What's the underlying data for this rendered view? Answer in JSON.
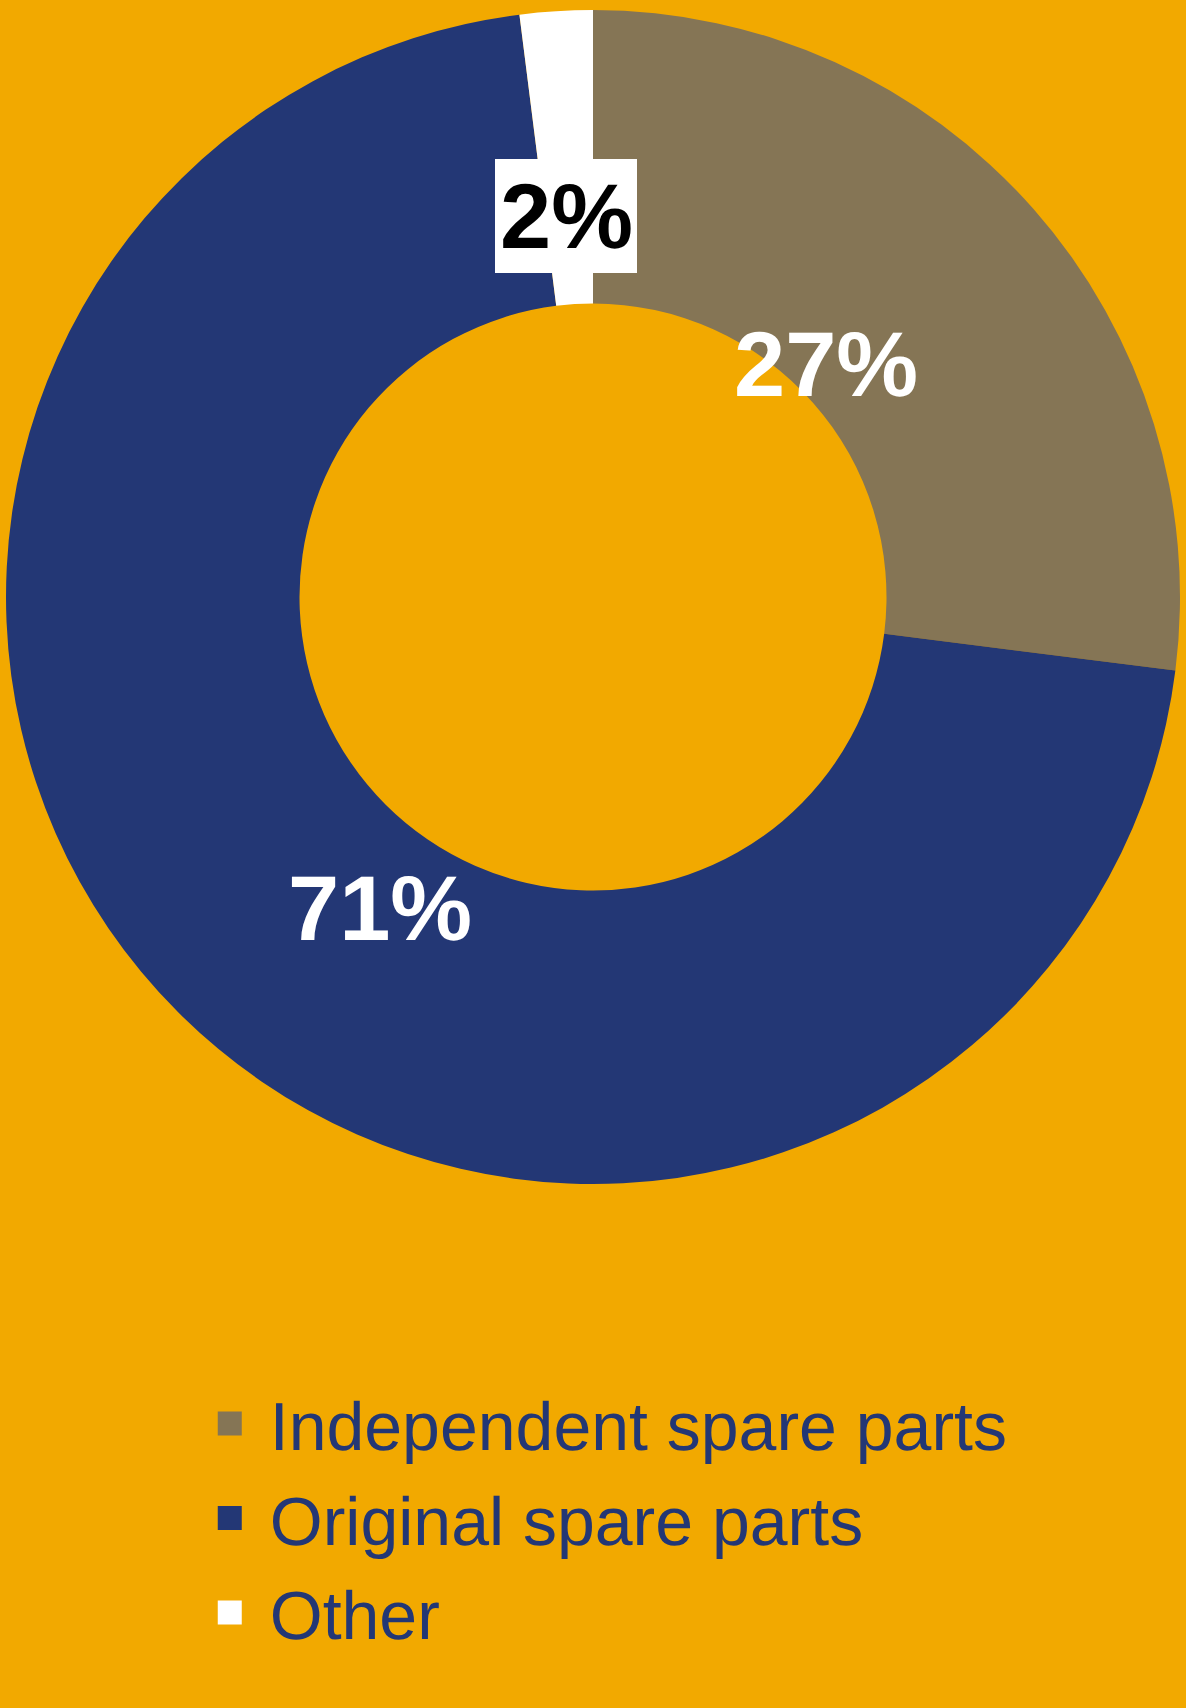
{
  "chart_data": {
    "type": "donut",
    "categories": [
      "Independent spare parts",
      "Original spare parts",
      "Other"
    ],
    "values": [
      27,
      71,
      2
    ],
    "colors": [
      "#857555",
      "#233775",
      "#ffffff"
    ],
    "value_labels": [
      "27%",
      "71%",
      "2%"
    ],
    "legend": "bottom"
  }
}
